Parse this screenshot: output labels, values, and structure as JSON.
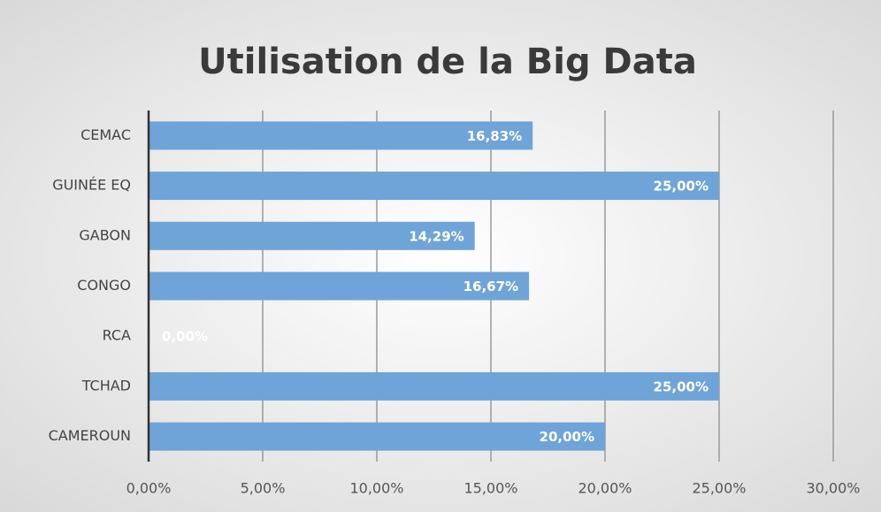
{
  "chart_data": {
    "type": "bar",
    "orientation": "horizontal",
    "title": "Utilisation de la Big Data",
    "categories": [
      "CEMAC",
      "GUINÉE EQ",
      "GABON",
      "CONGO",
      "RCA",
      "TCHAD",
      "CAMEROUN"
    ],
    "values": [
      16.83,
      25,
      14.29,
      16.67,
      0,
      25,
      20
    ],
    "value_labels": [
      "16,83%",
      "25,00%",
      "14,29%",
      "16,67%",
      "0,00%",
      "25,00%",
      "20,00%"
    ],
    "color": "#6fa4d9",
    "xlim": [
      0,
      30
    ],
    "xticks": [
      {
        "value": 0,
        "label": "0,00%"
      },
      {
        "value": 5,
        "label": "5,00%"
      },
      {
        "value": 10,
        "label": "10,00%"
      },
      {
        "value": 15,
        "label": "15,00%"
      },
      {
        "value": 20,
        "label": "20,00%"
      },
      {
        "value": 25,
        "label": "25,00%"
      },
      {
        "value": 30,
        "label": "30,00%"
      }
    ],
    "grid": true
  }
}
